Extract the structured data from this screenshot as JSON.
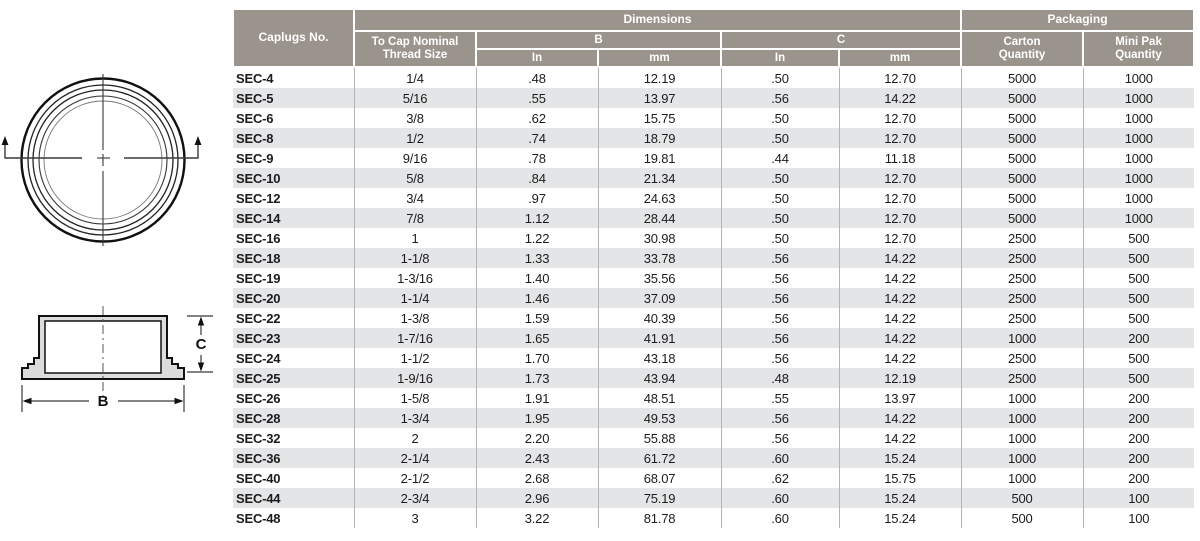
{
  "colors": {
    "header_bg": "#9b948c",
    "header_text": "#ffffff",
    "zebra_row": "#e4e5e7",
    "column_divider": "#b4b4b8",
    "header_separator": "#4f5052",
    "diagram_fill": "#dcdcdc"
  },
  "diagram": {
    "b_label": "B",
    "c_label": "C"
  },
  "table": {
    "header": {
      "caplugs_no": "Caplugs No.",
      "dimensions": "Dimensions",
      "packaging": "Packaging",
      "thread_size_line1": "To Cap Nominal",
      "thread_size_line2": "Thread Size",
      "b": "B",
      "c": "C",
      "b_in": "In",
      "b_mm": "mm",
      "c_in": "In",
      "c_mm": "mm",
      "carton_line1": "Carton",
      "carton_line2": "Quantity",
      "mini_pak_line1": "Mini Pak",
      "mini_pak_line2": "Quantity"
    },
    "column_keys": [
      "caplugs-no-cell",
      "thread-size-cell",
      "b-in-cell",
      "b-mm-cell",
      "c-in-cell",
      "c-mm-cell",
      "carton-quantity-cell",
      "mini-pak-quantity-cell"
    ],
    "rows": [
      [
        "SEC-4",
        "1/4",
        ".48",
        "12.19",
        ".50",
        "12.70",
        "5000",
        "1000"
      ],
      [
        "SEC-5",
        "5/16",
        ".55",
        "13.97",
        ".56",
        "14.22",
        "5000",
        "1000"
      ],
      [
        "SEC-6",
        "3/8",
        ".62",
        "15.75",
        ".50",
        "12.70",
        "5000",
        "1000"
      ],
      [
        "SEC-8",
        "1/2",
        ".74",
        "18.79",
        ".50",
        "12.70",
        "5000",
        "1000"
      ],
      [
        "SEC-9",
        "9/16",
        ".78",
        "19.81",
        ".44",
        "11.18",
        "5000",
        "1000"
      ],
      [
        "SEC-10",
        "5/8",
        ".84",
        "21.34",
        ".50",
        "12.70",
        "5000",
        "1000"
      ],
      [
        "SEC-12",
        "3/4",
        ".97",
        "24.63",
        ".50",
        "12.70",
        "5000",
        "1000"
      ],
      [
        "SEC-14",
        "7/8",
        "1.12",
        "28.44",
        ".50",
        "12.70",
        "5000",
        "1000"
      ],
      [
        "SEC-16",
        "1",
        "1.22",
        "30.98",
        ".50",
        "12.70",
        "2500",
        "500"
      ],
      [
        "SEC-18",
        "1-1/8",
        "1.33",
        "33.78",
        ".56",
        "14.22",
        "2500",
        "500"
      ],
      [
        "SEC-19",
        "1-3/16",
        "1.40",
        "35.56",
        ".56",
        "14.22",
        "2500",
        "500"
      ],
      [
        "SEC-20",
        "1-1/4",
        "1.46",
        "37.09",
        ".56",
        "14.22",
        "2500",
        "500"
      ],
      [
        "SEC-22",
        "1-3/8",
        "1.59",
        "40.39",
        ".56",
        "14.22",
        "2500",
        "500"
      ],
      [
        "SEC-23",
        "1-7/16",
        "1.65",
        "41.91",
        ".56",
        "14.22",
        "1000",
        "200"
      ],
      [
        "SEC-24",
        "1-1/2",
        "1.70",
        "43.18",
        ".56",
        "14.22",
        "2500",
        "500"
      ],
      [
        "SEC-25",
        "1-9/16",
        "1.73",
        "43.94",
        ".48",
        "12.19",
        "2500",
        "500"
      ],
      [
        "SEC-26",
        "1-5/8",
        "1.91",
        "48.51",
        ".55",
        "13.97",
        "1000",
        "200"
      ],
      [
        "SEC-28",
        "1-3/4",
        "1.95",
        "49.53",
        ".56",
        "14.22",
        "1000",
        "200"
      ],
      [
        "SEC-32",
        "2",
        "2.20",
        "55.88",
        ".56",
        "14.22",
        "1000",
        "200"
      ],
      [
        "SEC-36",
        "2-1/4",
        "2.43",
        "61.72",
        ".60",
        "15.24",
        "1000",
        "200"
      ],
      [
        "SEC-40",
        "2-1/2",
        "2.68",
        "68.07",
        ".62",
        "15.75",
        "1000",
        "200"
      ],
      [
        "SEC-44",
        "2-3/4",
        "2.96",
        "75.19",
        ".60",
        "15.24",
        "500",
        "100"
      ],
      [
        "SEC-48",
        "3",
        "3.22",
        "81.78",
        ".60",
        "15.24",
        "500",
        "100"
      ]
    ]
  }
}
